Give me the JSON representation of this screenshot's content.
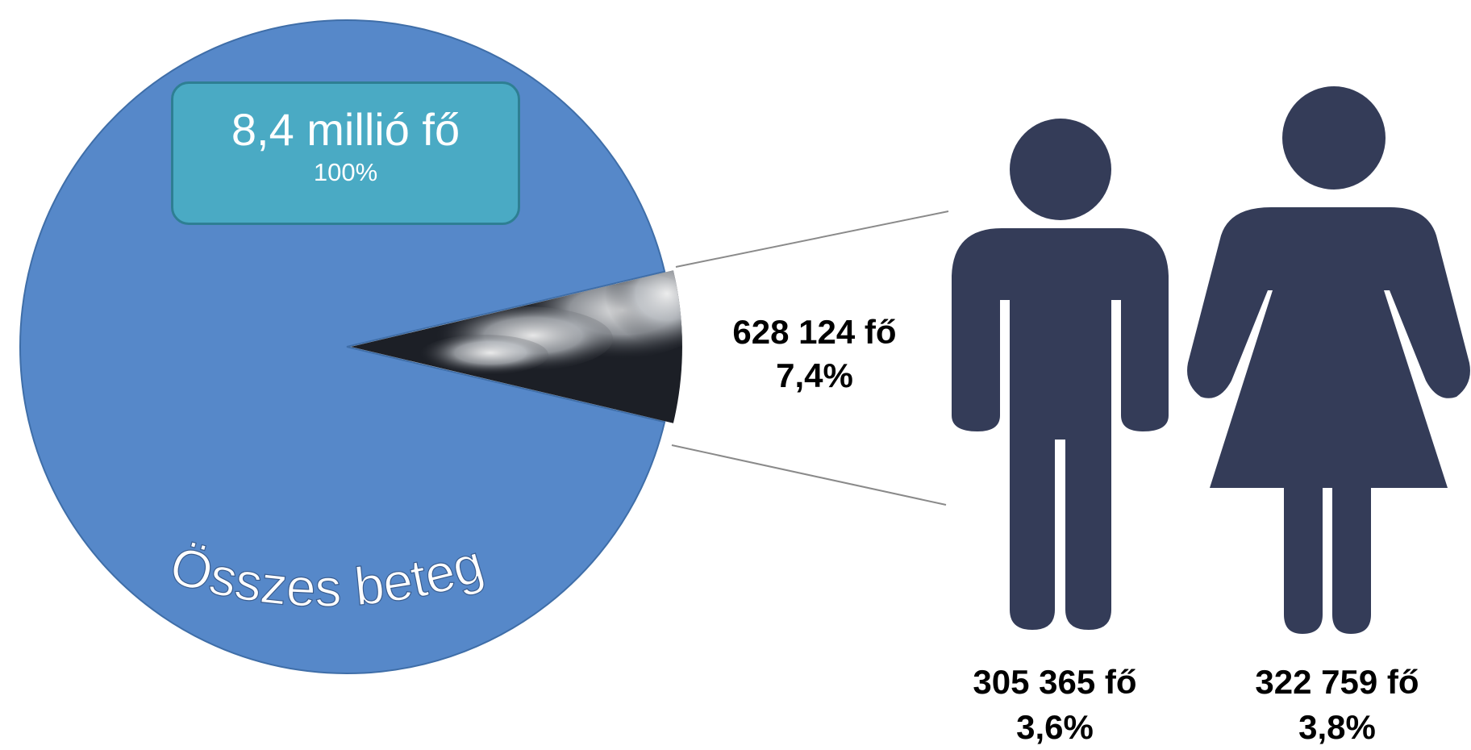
{
  "chart_data": {
    "type": "pie",
    "title": "",
    "slices": [
      {
        "name": "Összes beteg",
        "value": 100,
        "color": "#5688c9"
      },
      {
        "name": "",
        "value": 7.4,
        "color": "#1c1f26"
      }
    ],
    "total": {
      "count": "8,4 millió fő",
      "percent": "100%",
      "label": "Összes beteg"
    },
    "highlight": {
      "count": "628 124 fő",
      "percent": "7,4%"
    },
    "breakdown": [
      {
        "group": "male",
        "count": "305 365 fő",
        "percent": "3,6%",
        "value": 3.6,
        "icon": "male-person-icon",
        "color": "#343c58"
      },
      {
        "group": "female",
        "count": "322 759 fő",
        "percent": "3,8%",
        "value": 3.8,
        "icon": "female-person-icon",
        "color": "#343c58"
      }
    ]
  }
}
